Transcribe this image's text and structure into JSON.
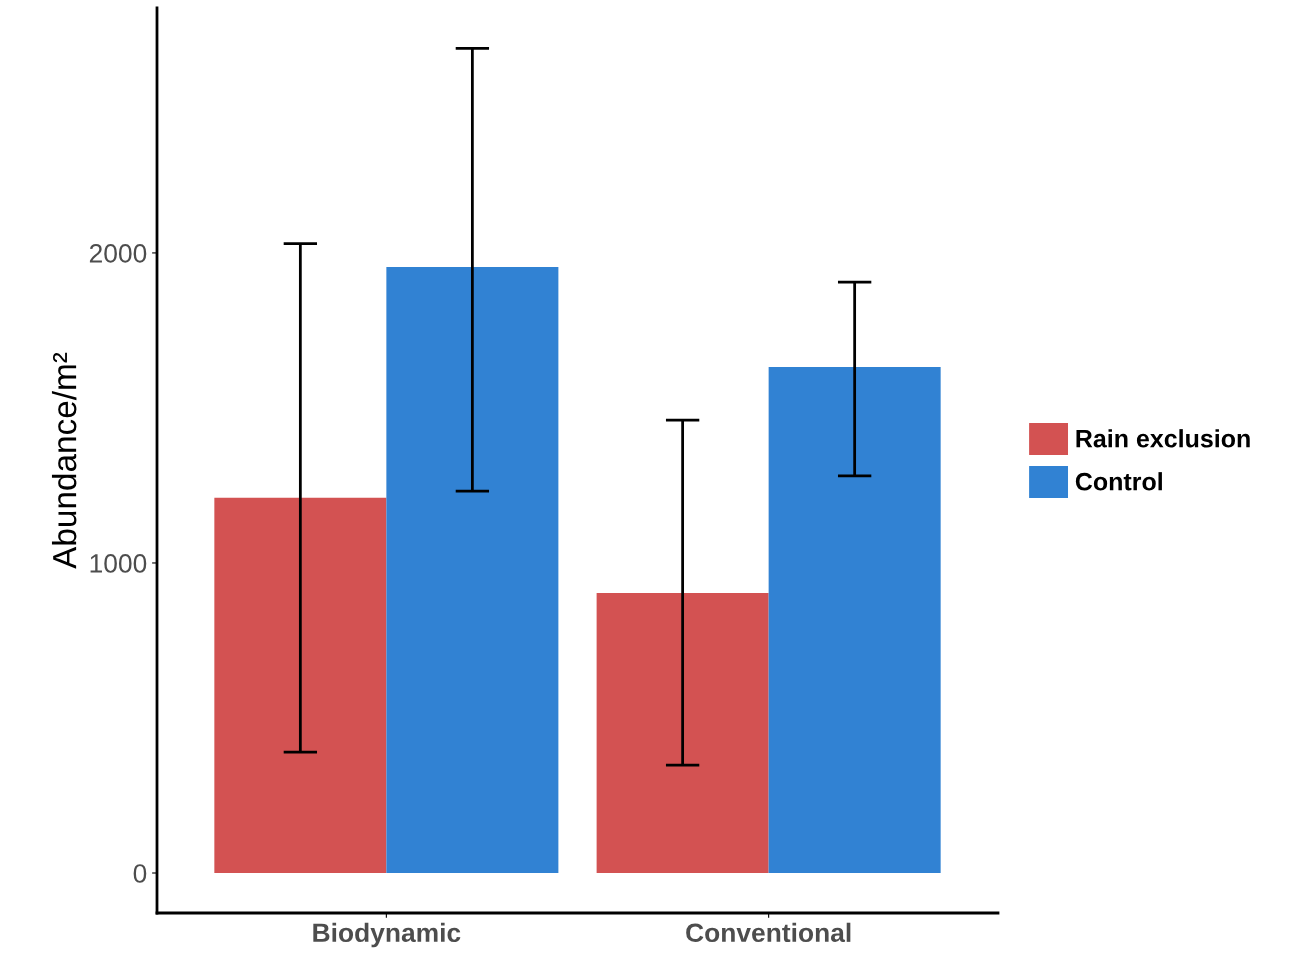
{
  "chart_data": {
    "type": "bar",
    "ylabel": "Abundance/m²",
    "categories": [
      "Biodynamic",
      "Conventional"
    ],
    "series": [
      {
        "name": "Rain exclusion",
        "color": "#d35252",
        "values": [
          1210,
          903
        ],
        "errors": [
          [
            390,
            2030
          ],
          [
            348,
            1461
          ]
        ]
      },
      {
        "name": "Control",
        "color": "#3182d3",
        "values": [
          1955,
          1632
        ],
        "errors": [
          [
            1232,
            2660
          ],
          [
            1281,
            1906
          ]
        ]
      }
    ],
    "ylim": [
      -129,
      2790
    ],
    "yticks": [
      0,
      1000,
      2000
    ],
    "grid": false,
    "legend": "right"
  }
}
